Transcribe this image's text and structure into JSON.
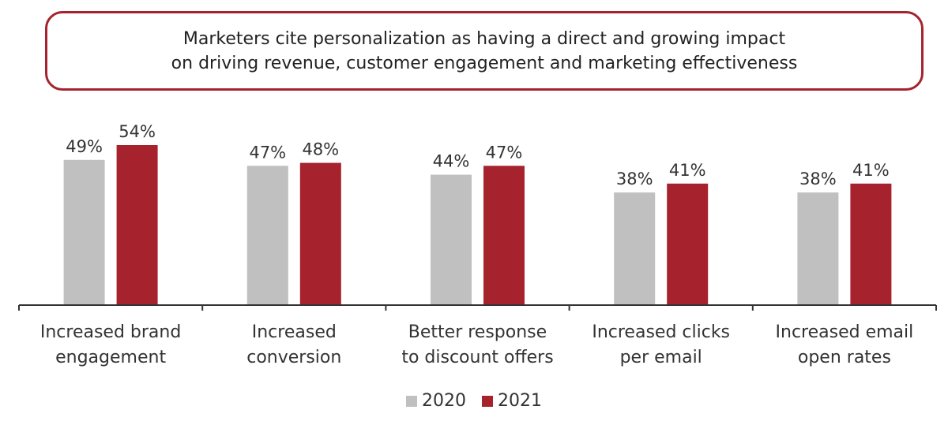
{
  "title": {
    "line1": "Marketers cite personalization as having a direct and growing impact",
    "line2": "on driving revenue, customer engagement and marketing effectiveness"
  },
  "legend": {
    "series1": "2020",
    "series2": "2021"
  },
  "colors": {
    "series1": "#c0c0c0",
    "series2": "#a6232e",
    "title_border": "#a6232e",
    "axis": "#333333"
  },
  "chart_data": {
    "type": "bar",
    "title": "Marketers cite personalization as having a direct and growing impact on driving revenue, customer engagement and marketing effectiveness",
    "categories": [
      [
        "Increased brand",
        "engagement"
      ],
      [
        "Increased",
        "conversion"
      ],
      [
        "Better response",
        "to discount offers"
      ],
      [
        "Increased clicks",
        "per email"
      ],
      [
        "Increased email",
        "open rates"
      ]
    ],
    "series": [
      {
        "name": "2020",
        "values": [
          49,
          47,
          44,
          38,
          38
        ]
      },
      {
        "name": "2021",
        "values": [
          54,
          48,
          47,
          41,
          41
        ]
      }
    ],
    "value_suffix": "%",
    "ylim": [
      0,
      54
    ],
    "legend_position": "bottom",
    "grid": false,
    "xlabel": "",
    "ylabel": ""
  }
}
